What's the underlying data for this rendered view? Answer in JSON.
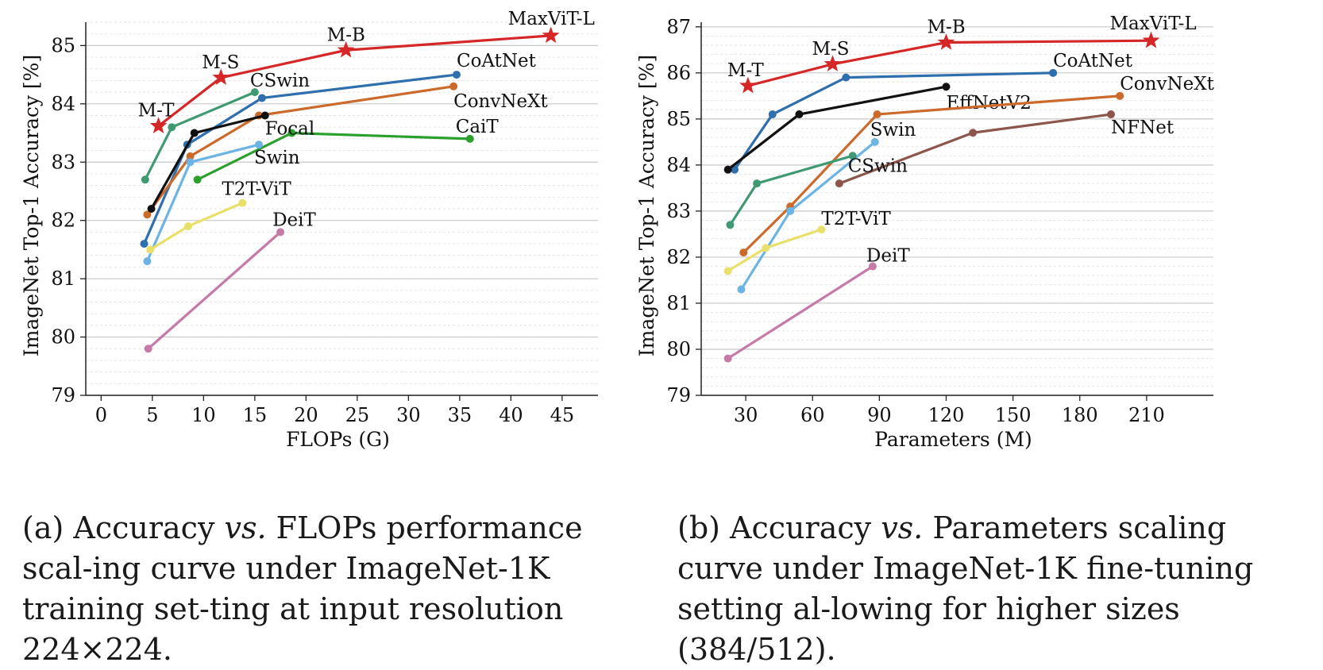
{
  "chart_data": [
    {
      "type": "line",
      "xlabel": "FLOPs (G)",
      "ylabel": "ImageNet Top-1 Accuracy [%]",
      "xlim": [
        -1.5,
        48.5
      ],
      "ylim": [
        79,
        85.4
      ],
      "xticks": [
        0,
        5,
        10,
        15,
        20,
        25,
        30,
        35,
        40,
        45
      ],
      "yticks": [
        79,
        80,
        81,
        82,
        83,
        84,
        85
      ],
      "grid": "horizontal, major and minor dashed",
      "legend": "none (series labeled inline)",
      "series": [
        {
          "name": "MaxViT-L",
          "color": "#d62728",
          "marker": "star",
          "x": [
            5.6,
            11.7,
            23.9,
            43.9
          ],
          "y": [
            83.62,
            84.45,
            84.92,
            85.17
          ],
          "point_labels": [
            "M-T",
            "M-S",
            "M-B",
            "MaxViT-L"
          ]
        },
        {
          "name": "CoAtNet",
          "color": "#2f6fad",
          "marker": "circle",
          "x": [
            4.2,
            8.4,
            15.7,
            34.7
          ],
          "y": [
            81.6,
            83.3,
            84.1,
            84.5
          ]
        },
        {
          "name": "ConvNeXt",
          "color": "#cc6a2c",
          "marker": "circle",
          "x": [
            4.5,
            8.7,
            15.4,
            34.4
          ],
          "y": [
            82.1,
            83.1,
            83.8,
            84.3
          ]
        },
        {
          "name": "CaiT",
          "color": "#2ca02c",
          "marker": "circle",
          "x": [
            9.4,
            18.6,
            36.0
          ],
          "y": [
            82.7,
            83.5,
            83.4
          ]
        },
        {
          "name": "CSwin",
          "color": "#3f9a72",
          "marker": "circle",
          "x": [
            4.3,
            6.9,
            15.0
          ],
          "y": [
            82.7,
            83.6,
            84.2
          ]
        },
        {
          "name": "Focal",
          "color": "#111111",
          "marker": "circle",
          "x": [
            4.9,
            9.1,
            16.0
          ],
          "y": [
            82.2,
            83.5,
            83.8
          ]
        },
        {
          "name": "Swin",
          "color": "#6cb4e4",
          "marker": "circle",
          "x": [
            4.5,
            8.7,
            15.4
          ],
          "y": [
            81.3,
            83.0,
            83.3
          ]
        },
        {
          "name": "T2T-ViT",
          "color": "#e8e06a",
          "marker": "circle",
          "x": [
            4.8,
            8.5,
            13.8
          ],
          "y": [
            81.5,
            81.9,
            82.3
          ]
        },
        {
          "name": "DeiT",
          "color": "#c57aa8",
          "marker": "circle",
          "x": [
            4.6,
            17.5
          ],
          "y": [
            79.8,
            81.8
          ]
        }
      ]
    },
    {
      "type": "line",
      "xlabel": "Parameters (M)",
      "ylabel": "ImageNet Top-1 Accuracy [%]",
      "xlim": [
        10,
        240
      ],
      "ylim": [
        79,
        87.1
      ],
      "xticks": [
        30,
        60,
        90,
        120,
        150,
        180,
        210
      ],
      "yticks": [
        79,
        80,
        81,
        82,
        83,
        84,
        85,
        86,
        87
      ],
      "grid": "horizontal, major and minor dashed",
      "legend": "none (series labeled inline)",
      "series": [
        {
          "name": "MaxViT-L",
          "color": "#d62728",
          "marker": "star",
          "x": [
            31,
            69,
            120,
            212
          ],
          "y": [
            85.72,
            86.19,
            86.66,
            86.7
          ],
          "point_labels": [
            "M-T",
            "M-S",
            "M-B",
            "MaxViT-L"
          ]
        },
        {
          "name": "CoAtNet",
          "color": "#2f6fad",
          "marker": "circle",
          "x": [
            25,
            42,
            75,
            168
          ],
          "y": [
            83.9,
            85.1,
            85.9,
            86.0
          ]
        },
        {
          "name": "EffNetV2",
          "color": "#111111",
          "marker": "circle",
          "x": [
            22,
            54,
            120
          ],
          "y": [
            83.9,
            85.1,
            85.7
          ]
        },
        {
          "name": "ConvNeXt",
          "color": "#cc6a2c",
          "marker": "circle",
          "x": [
            29,
            50,
            89,
            198
          ],
          "y": [
            82.1,
            83.1,
            85.1,
            85.5
          ]
        },
        {
          "name": "NFNet",
          "color": "#8c564b",
          "marker": "circle",
          "x": [
            72,
            132,
            194
          ],
          "y": [
            83.6,
            84.7,
            85.1
          ]
        },
        {
          "name": "Swin",
          "color": "#6cb4e4",
          "marker": "circle",
          "x": [
            28,
            50,
            88
          ],
          "y": [
            81.3,
            83.0,
            84.5
          ]
        },
        {
          "name": "CSwin",
          "color": "#3f9a72",
          "marker": "circle",
          "x": [
            23,
            35,
            78
          ],
          "y": [
            82.7,
            83.6,
            84.2
          ]
        },
        {
          "name": "T2T-ViT",
          "color": "#e8e06a",
          "marker": "circle",
          "x": [
            22,
            39,
            64
          ],
          "y": [
            81.7,
            82.2,
            82.6
          ]
        },
        {
          "name": "DeiT",
          "color": "#c57aa8",
          "marker": "circle",
          "x": [
            22,
            87
          ],
          "y": [
            79.8,
            81.8
          ]
        }
      ]
    }
  ],
  "captions": {
    "a": {
      "prefix": "(a) Accuracy ",
      "vs": "vs.",
      "suffix": " FLOPs performance scal-ing curve under ImageNet-1K training set-ting at input resolution 224×224."
    },
    "b": {
      "prefix": "(b) Accuracy ",
      "vs": "vs.",
      "suffix": " Parameters scaling curve under ImageNet-1K fine-tuning setting al-lowing for higher sizes (384/512)."
    }
  }
}
